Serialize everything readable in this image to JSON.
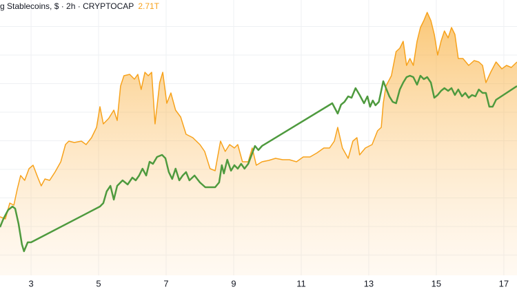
{
  "chart_data": {
    "type": "area-line",
    "title": "g Stablecoins, $ · 2h · CRYPTOCAP",
    "last_value": "2.71T",
    "xlim": [
      2.08,
      17.39
    ],
    "xticks": [
      3,
      5,
      7,
      9,
      11,
      13,
      15,
      17
    ],
    "ylim": [
      12,
      412
    ],
    "ygrid": [
      41.5,
      83,
      124.5,
      166,
      207.5,
      249,
      290.5,
      332,
      373.5
    ],
    "grid": true,
    "series": [
      {
        "color": "#f7a21b",
        "fill": true,
        "x": [
          2.08,
          2.24,
          2.37,
          2.49,
          2.59,
          2.69,
          2.81,
          2.94,
          3.06,
          3.2,
          3.3,
          3.41,
          3.55,
          3.71,
          3.88,
          4.02,
          4.12,
          4.28,
          4.49,
          4.63,
          4.79,
          4.94,
          5.04,
          5.14,
          5.3,
          5.45,
          5.55,
          5.65,
          5.75,
          5.92,
          6.06,
          6.16,
          6.26,
          6.37,
          6.47,
          6.57,
          6.67,
          6.81,
          6.9,
          7.02,
          7.14,
          7.28,
          7.43,
          7.59,
          7.79,
          8.0,
          8.14,
          8.3,
          8.45,
          8.61,
          8.75,
          8.88,
          9.02,
          9.12,
          9.26,
          9.43,
          9.55,
          9.67,
          9.84,
          10.04,
          10.24,
          10.45,
          10.65,
          10.86,
          11.06,
          11.26,
          11.47,
          11.67,
          11.84,
          11.98,
          12.08,
          12.22,
          12.39,
          12.53,
          12.65,
          12.73,
          12.9,
          13.1,
          13.26,
          13.37,
          13.43,
          13.51,
          13.67,
          13.81,
          13.92,
          14.02,
          14.12,
          14.22,
          14.32,
          14.43,
          14.53,
          14.63,
          14.73,
          14.84,
          14.94,
          15.04,
          15.14,
          15.24,
          15.35,
          15.45,
          15.55,
          15.65,
          15.79,
          15.96,
          16.12,
          16.26,
          16.37,
          16.47,
          16.61,
          16.77,
          16.94,
          17.08,
          17.22,
          17.39
        ],
        "values": [
          97,
          94,
          117,
          114,
          137,
          157,
          150,
          167,
          172,
          154,
          142,
          152,
          150,
          162,
          177,
          202,
          207,
          205,
          207,
          202,
          212,
          227,
          257,
          232,
          240,
          252,
          237,
          287,
          302,
          304,
          297,
          304,
          282,
          307,
          302,
          307,
          232,
          292,
          307,
          262,
          277,
          252,
          242,
          217,
          212,
          202,
          192,
          167,
          164,
          207,
          192,
          202,
          197,
          202,
          177,
          177,
          197,
          172,
          177,
          179,
          182,
          180,
          180,
          177,
          184,
          184,
          190,
          197,
          197,
          207,
          227,
          197,
          182,
          207,
          212,
          187,
          197,
          202,
          222,
          227,
          262,
          287,
          302,
          337,
          342,
          352,
          317,
          327,
          317,
          352,
          372,
          382,
          394,
          382,
          362,
          332,
          352,
          367,
          357,
          372,
          362,
          327,
          327,
          317,
          324,
          322,
          317,
          292,
          307,
          322,
          312,
          317,
          314,
          322
        ]
      },
      {
        "color": "#4e9a3e",
        "fill": false,
        "x": [
          2.08,
          2.18,
          2.32,
          2.45,
          2.53,
          2.63,
          2.73,
          2.79,
          2.9,
          3.0,
          5.04,
          5.14,
          5.24,
          5.35,
          5.45,
          5.55,
          5.71,
          5.86,
          6.0,
          6.1,
          6.2,
          6.3,
          6.41,
          6.51,
          6.61,
          6.73,
          6.88,
          6.98,
          7.08,
          7.18,
          7.28,
          7.39,
          7.49,
          7.59,
          7.69,
          7.84,
          8.0,
          8.16,
          8.3,
          8.45,
          8.57,
          8.65,
          8.71,
          8.81,
          8.92,
          9.02,
          9.12,
          9.22,
          9.32,
          9.43,
          9.53,
          9.63,
          9.73,
          9.84,
          11.92,
          12.08,
          12.18,
          12.28,
          12.39,
          12.49,
          12.61,
          12.73,
          12.86,
          12.96,
          13.04,
          13.12,
          13.2,
          13.3,
          13.43,
          13.51,
          13.61,
          13.71,
          13.81,
          13.92,
          14.02,
          14.12,
          14.22,
          14.32,
          14.43,
          14.53,
          14.63,
          14.73,
          14.84,
          14.94,
          15.04,
          15.14,
          15.24,
          15.35,
          15.45,
          15.55,
          15.65,
          15.76,
          15.86,
          15.96,
          16.06,
          16.16,
          16.26,
          16.37,
          16.47,
          16.57,
          16.67,
          16.77,
          17.39
        ],
        "values": [
          82,
          94,
          107,
          112,
          109,
          87,
          57,
          47,
          60,
          60,
          112,
          117,
          134,
          142,
          122,
          142,
          150,
          144,
          154,
          150,
          157,
          167,
          157,
          177,
          174,
          184,
          187,
          182,
          162,
          152,
          167,
          150,
          157,
          162,
          150,
          157,
          147,
          140,
          140,
          140,
          147,
          172,
          160,
          180,
          164,
          172,
          167,
          174,
          167,
          174,
          187,
          200,
          194,
          200,
          262,
          247,
          260,
          264,
          272,
          270,
          284,
          274,
          262,
          272,
          257,
          266,
          259,
          264,
          294,
          284,
          272,
          264,
          262,
          282,
          292,
          300,
          302,
          300,
          289,
          302,
          297,
          300,
          292,
          270,
          274,
          280,
          284,
          280,
          284,
          274,
          282,
          272,
          277,
          270,
          274,
          272,
          282,
          277,
          277,
          257,
          257,
          267,
          287
        ]
      }
    ]
  }
}
